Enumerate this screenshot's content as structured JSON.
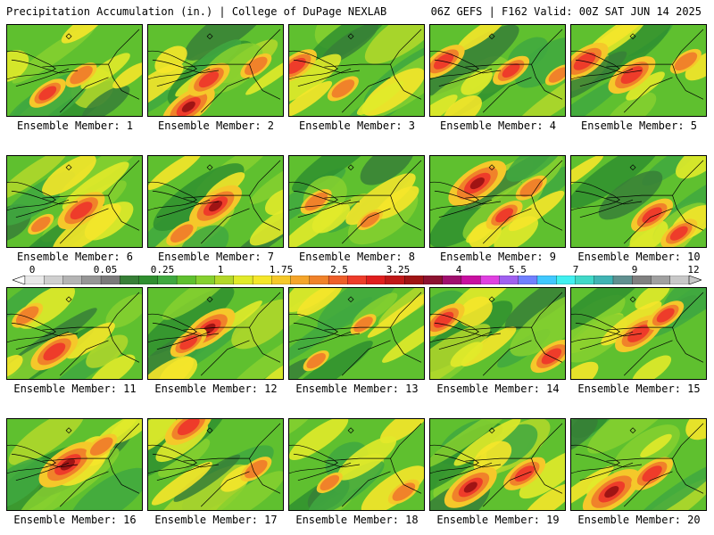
{
  "header": {
    "title": "Precipitation Accumulation (in.) | College of DuPage NEXLAB",
    "run_info": "06Z GEFS | F162 Valid: 00Z SAT JUN 14 2025"
  },
  "panels": [
    {
      "label": "Ensemble Member: 1",
      "hot": [
        [
          0.3,
          0.75,
          0.6
        ],
        [
          0.55,
          0.55,
          0.5
        ]
      ]
    },
    {
      "label": "Ensemble Member: 2",
      "hot": [
        [
          0.3,
          0.9,
          0.9
        ],
        [
          0.45,
          0.6,
          0.7
        ],
        [
          0.8,
          0.45,
          0.5
        ]
      ]
    },
    {
      "label": "Ensemble Member: 3",
      "hot": [
        [
          0.05,
          0.45,
          0.7
        ],
        [
          0.4,
          0.7,
          0.5
        ]
      ]
    },
    {
      "label": "Ensemble Member: 4",
      "hot": [
        [
          0.1,
          0.4,
          0.7
        ],
        [
          0.6,
          0.5,
          0.6
        ],
        [
          0.95,
          0.55,
          0.4
        ]
      ]
    },
    {
      "label": "Ensemble Member: 5",
      "hot": [
        [
          0.1,
          0.4,
          0.8
        ],
        [
          0.45,
          0.55,
          0.8
        ],
        [
          0.85,
          0.4,
          0.5
        ]
      ]
    },
    {
      "label": "Ensemble Member: 6",
      "hot": [
        [
          0.55,
          0.6,
          0.8
        ],
        [
          0.25,
          0.75,
          0.4
        ]
      ]
    },
    {
      "label": "Ensemble Member: 7",
      "hot": [
        [
          0.5,
          0.55,
          0.9
        ],
        [
          0.25,
          0.85,
          0.5
        ]
      ]
    },
    {
      "label": "Ensemble Member: 8",
      "hot": [
        [
          0.2,
          0.5,
          0.5
        ],
        [
          0.6,
          0.7,
          0.4
        ]
      ]
    },
    {
      "label": "Ensemble Member: 9",
      "hot": [
        [
          0.35,
          0.3,
          1.0
        ],
        [
          0.55,
          0.65,
          0.6
        ],
        [
          0.75,
          0.35,
          0.5
        ]
      ]
    },
    {
      "label": "Ensemble Member: 10",
      "hot": [
        [
          0.6,
          0.65,
          0.7
        ],
        [
          0.8,
          0.85,
          0.6
        ]
      ]
    },
    {
      "label": "Ensemble Member: 11",
      "hot": [
        [
          0.35,
          0.7,
          0.8
        ],
        [
          0.15,
          0.3,
          0.5
        ]
      ]
    },
    {
      "label": "Ensemble Member: 12",
      "hot": [
        [
          0.45,
          0.45,
          0.9
        ],
        [
          0.3,
          0.6,
          0.6
        ]
      ]
    },
    {
      "label": "Ensemble Member: 13",
      "hot": [
        [
          0.55,
          0.4,
          0.4
        ],
        [
          0.2,
          0.8,
          0.4
        ]
      ]
    },
    {
      "label": "Ensemble Member: 14",
      "hot": [
        [
          0.1,
          0.35,
          0.7
        ],
        [
          0.9,
          0.75,
          0.7
        ]
      ]
    },
    {
      "label": "Ensemble Member: 15",
      "hot": [
        [
          0.5,
          0.5,
          0.8
        ],
        [
          0.7,
          0.3,
          0.6
        ]
      ]
    },
    {
      "label": "Ensemble Member: 16",
      "hot": [
        [
          0.45,
          0.5,
          1.0
        ],
        [
          0.7,
          0.3,
          0.5
        ]
      ]
    },
    {
      "label": "Ensemble Member: 17",
      "hot": [
        [
          0.3,
          0.08,
          0.8
        ],
        [
          0.8,
          0.55,
          0.5
        ]
      ]
    },
    {
      "label": "Ensemble Member: 18",
      "hot": [
        [
          0.85,
          0.8,
          0.5
        ],
        [
          0.3,
          0.7,
          0.4
        ]
      ]
    },
    {
      "label": "Ensemble Member: 19",
      "hot": [
        [
          0.3,
          0.75,
          0.9
        ],
        [
          0.7,
          0.6,
          0.7
        ]
      ]
    },
    {
      "label": "Ensemble Member: 20",
      "hot": [
        [
          0.3,
          0.8,
          1.0
        ],
        [
          0.6,
          0.6,
          0.7
        ]
      ]
    }
  ],
  "colorbar": {
    "ticks": [
      "0",
      "0.05",
      "0.25",
      "1",
      "1.75",
      "2.5",
      "3.25",
      "4",
      "5.5",
      "7",
      "9",
      "12"
    ],
    "colors": [
      "#e8e8e8",
      "#cfcfcf",
      "#b4b4b4",
      "#969696",
      "#7a7a7a",
      "#377f37",
      "#2f8f2f",
      "#3fa83f",
      "#5fc02f",
      "#86d02f",
      "#b4d82a",
      "#e1ea2a",
      "#f5e62a",
      "#f5c82a",
      "#f5a52a",
      "#f0822a",
      "#ee5f2a",
      "#ee3c2a",
      "#e01e1e",
      "#c01818",
      "#a01414",
      "#8c1230",
      "#a0106e",
      "#c810a0",
      "#e040e0",
      "#a060f0",
      "#7080ff",
      "#40c8ff",
      "#40f0f0",
      "#40d8c8",
      "#40b4b4",
      "#609090",
      "#808080",
      "#a0a0a0",
      "#c8c8c8"
    ]
  }
}
